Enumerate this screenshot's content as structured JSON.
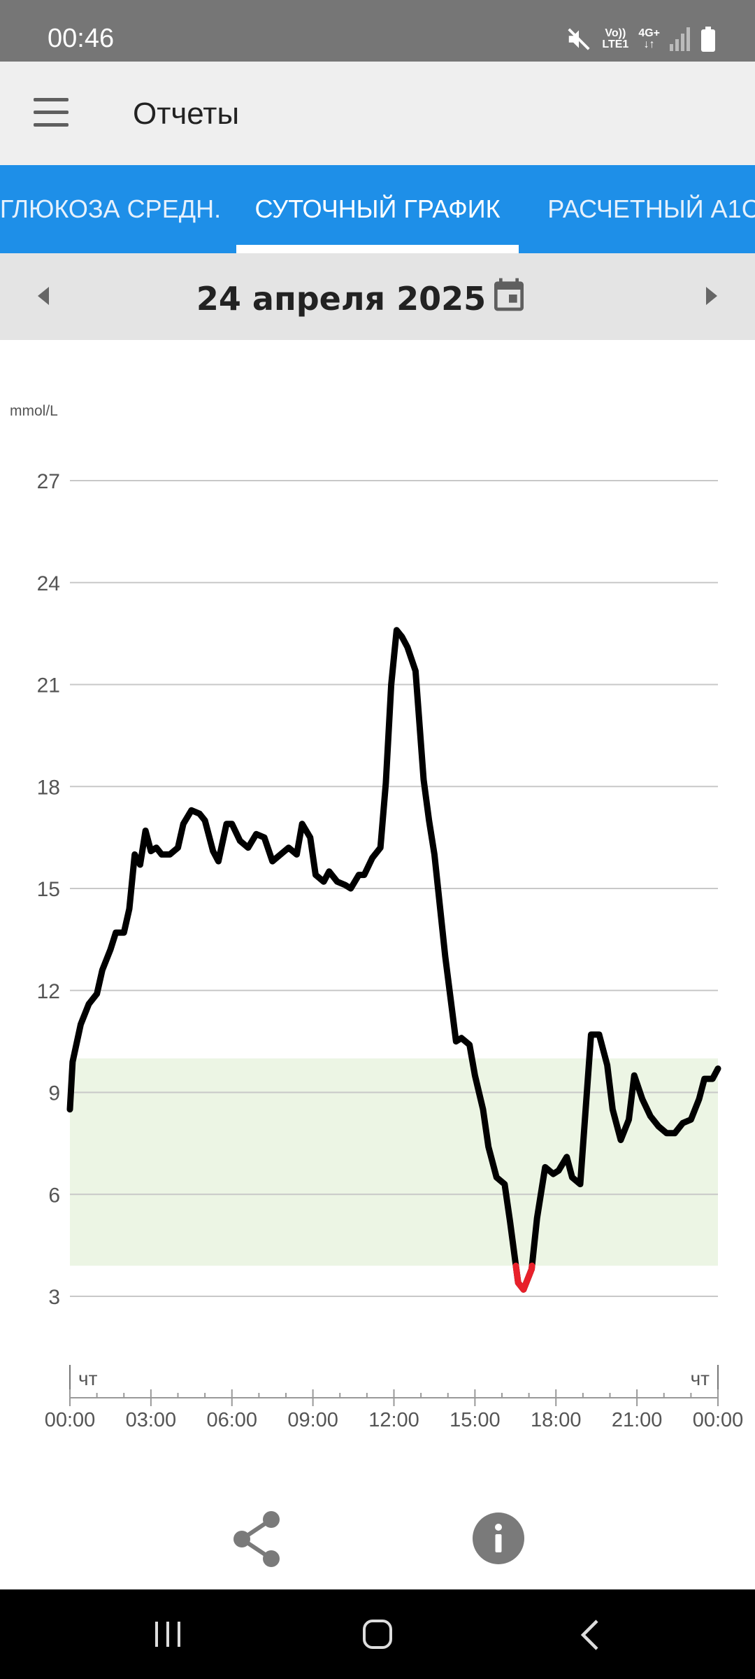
{
  "status_bar": {
    "time": "00:46",
    "net_top": "Vo))",
    "net_bottom": "LTE1",
    "net2_top": "4G+",
    "net2_bottom": "↓↑"
  },
  "app_bar": {
    "title": "Отчеты",
    "menu_icon": "menu-icon"
  },
  "tabs": [
    {
      "label": "ГЛЮКОЗА СРЕДН.",
      "active": false
    },
    {
      "label": "СУТОЧНЫЙ ГРАФИК",
      "active": true
    },
    {
      "label": "РАСЧЕТНЫЙ A1C",
      "active": false
    }
  ],
  "date_bar": {
    "date": "24 апреля 2025",
    "prev_icon": "chevron-left-icon",
    "next_icon": "chevron-right-icon",
    "calendar_icon": "calendar-icon"
  },
  "colors": {
    "accent": "#1e8fe8",
    "target_range": "#ecf5e4",
    "line": "#000000",
    "low": "#e8202a"
  },
  "chart_data": {
    "type": "line",
    "ylabel": "mmol/L",
    "ylim": [
      0,
      27
    ],
    "yticks": [
      "27",
      "24",
      "21",
      "18",
      "15",
      "12",
      "9",
      "6",
      "3"
    ],
    "xticks": [
      "00:00",
      "03:00",
      "06:00",
      "09:00",
      "12:00",
      "15:00",
      "18:00",
      "21:00",
      "00:00"
    ],
    "day_labels": [
      "чт",
      "чт"
    ],
    "target_range": [
      3.9,
      10.0
    ],
    "low_threshold": 3.9,
    "series": [
      {
        "x_hours": [
          0,
          0.1,
          0.4,
          0.7,
          1.0,
          1.2,
          1.5,
          1.7,
          2.0,
          2.2,
          2.4,
          2.6,
          2.8,
          3.0,
          3.2,
          3.4,
          3.7,
          4.0,
          4.2,
          4.5,
          4.8,
          5.0,
          5.3,
          5.5,
          5.8,
          6.0,
          6.3,
          6.6,
          6.9,
          7.2,
          7.5,
          7.8,
          8.1,
          8.4,
          8.6,
          8.9,
          9.1,
          9.4,
          9.6,
          9.9,
          10.2,
          10.4,
          10.7,
          10.9,
          11.2,
          11.5,
          11.7,
          11.9,
          12.1,
          12.3,
          12.5,
          12.8,
          13.1,
          13.3,
          13.5,
          13.9,
          14.3,
          14.5,
          14.8,
          15.0,
          15.3,
          15.5,
          15.8,
          16.1,
          16.3,
          16.6,
          16.8,
          17.1,
          17.3,
          17.6,
          17.9,
          18.1,
          18.4,
          18.6,
          18.9,
          19.1,
          19.3,
          19.6,
          19.9,
          20.1,
          20.4,
          20.7,
          20.9,
          21.2,
          21.5,
          21.8,
          22.1,
          22.4,
          22.7,
          23.0,
          23.3,
          23.5,
          23.8,
          24.0
        ],
        "y": [
          8.5,
          9.9,
          11.0,
          11.6,
          11.9,
          12.6,
          13.2,
          13.7,
          13.7,
          14.4,
          16.0,
          15.7,
          16.7,
          16.1,
          16.2,
          16.0,
          16.0,
          16.2,
          16.9,
          17.3,
          17.2,
          17.0,
          16.1,
          15.8,
          16.9,
          16.9,
          16.4,
          16.2,
          16.6,
          16.5,
          15.8,
          16.0,
          16.2,
          16.0,
          16.9,
          16.5,
          15.4,
          15.2,
          15.5,
          15.2,
          15.1,
          15.0,
          15.4,
          15.4,
          15.9,
          16.2,
          18.1,
          21.0,
          22.6,
          22.4,
          22.1,
          21.4,
          18.2,
          17.0,
          16.0,
          13.0,
          10.5,
          10.6,
          10.4,
          9.5,
          8.5,
          7.4,
          6.5,
          6.3,
          5.2,
          3.4,
          3.2,
          3.8,
          5.3,
          6.8,
          6.6,
          6.7,
          7.1,
          6.5,
          6.3,
          8.5,
          10.7,
          10.7,
          9.8,
          8.5,
          7.6,
          8.2,
          9.5,
          8.8,
          8.3,
          8.0,
          7.8,
          7.8,
          8.1,
          8.2,
          8.8,
          9.4,
          9.4,
          9.7
        ]
      }
    ]
  },
  "bottom": {
    "share_icon": "share-icon",
    "info_icon": "info-icon"
  },
  "nav": {
    "recents_icon": "recents-icon",
    "home_icon": "home-icon",
    "back_icon": "back-icon"
  }
}
